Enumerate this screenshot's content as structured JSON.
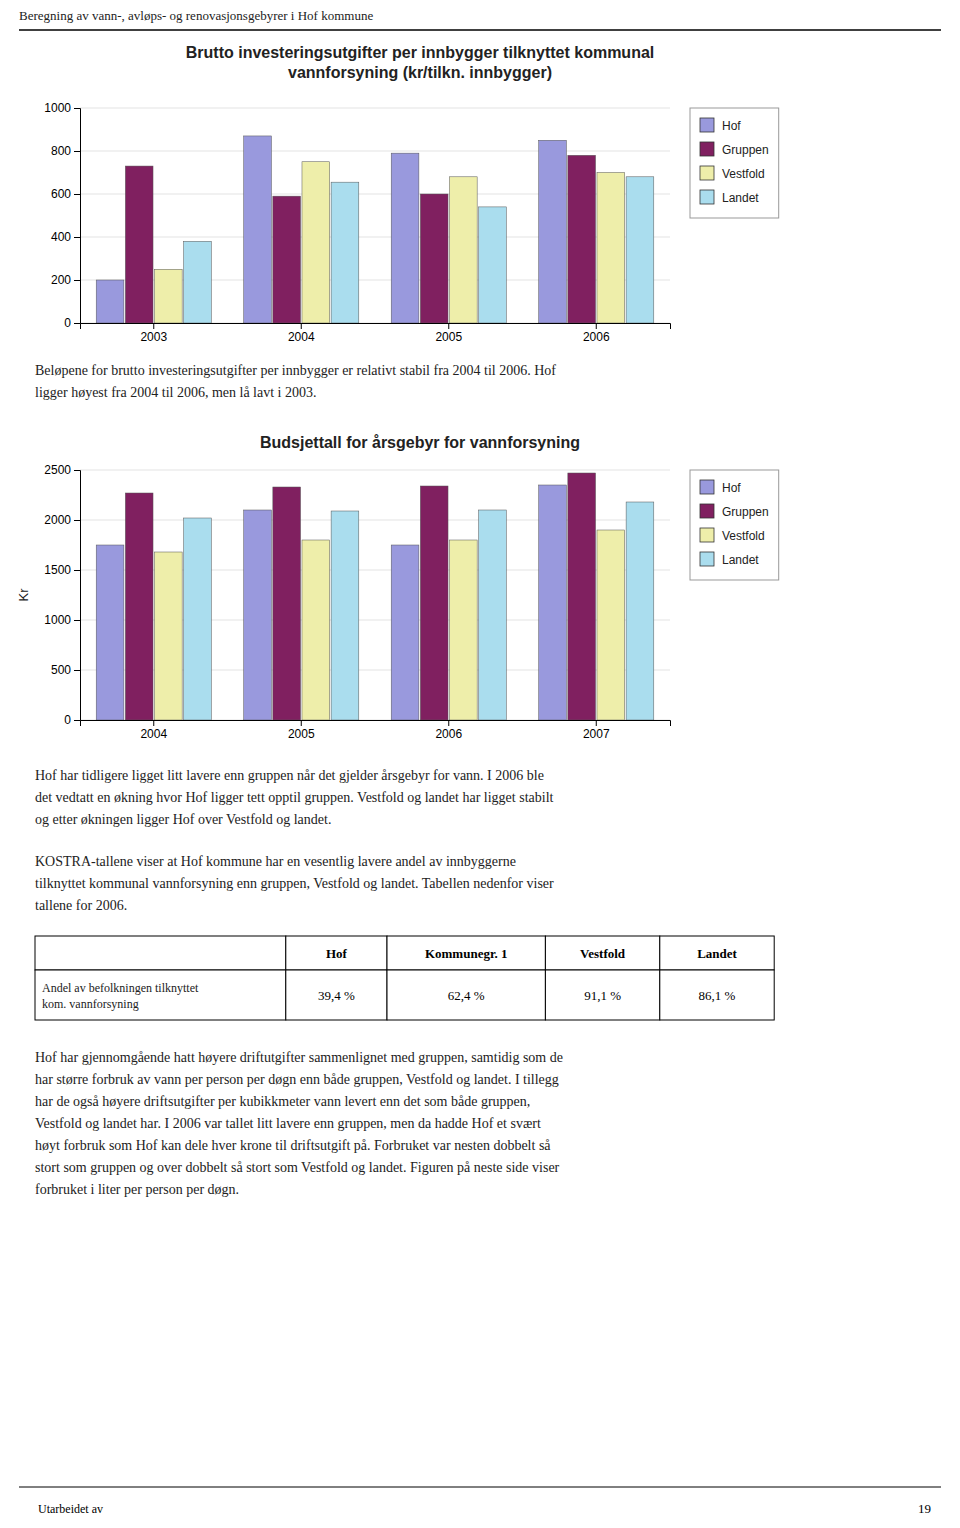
{
  "page_title": "Beregning av vann-, avløps- og renovasjonsgebyrer i Hof kommune",
  "chart_data": [
    {
      "type": "bar",
      "title": "Brutto investeringsutgifter per innbygger tilknyttet kommunal\nvannforsyning (kr/tilkn. innbygger)",
      "categories": [
        "2003",
        "2004",
        "2005",
        "2006"
      ],
      "series": [
        {
          "name": "Hof",
          "color": "#9999DD",
          "values": [
            200,
            870,
            790,
            850
          ]
        },
        {
          "name": "Gruppen",
          "color": "#802060",
          "values": [
            730,
            590,
            600,
            780
          ]
        },
        {
          "name": "Vestfold",
          "color": "#EEEEAA",
          "values": [
            250,
            750,
            680,
            700
          ]
        },
        {
          "name": "Landet",
          "color": "#AADDEE",
          "values": [
            380,
            655,
            540,
            680
          ]
        }
      ],
      "ylim": [
        0,
        1000
      ],
      "yticks": [
        0,
        200,
        400,
        600,
        800,
        1000
      ],
      "grid": true,
      "legend": "right"
    },
    {
      "type": "bar",
      "title": "Budsjettall for årsgebyr for vannforsyning",
      "ylabel": "Kr",
      "categories": [
        "2004",
        "2005",
        "2006",
        "2007"
      ],
      "series": [
        {
          "name": "Hof",
          "color": "#9999DD",
          "values": [
            1750,
            2100,
            1750,
            2350
          ]
        },
        {
          "name": "Gruppen",
          "color": "#802060",
          "values": [
            2270,
            2330,
            2340,
            2470
          ]
        },
        {
          "name": "Vestfold",
          "color": "#EEEEAA",
          "values": [
            1680,
            1800,
            1800,
            1900
          ]
        },
        {
          "name": "Landet",
          "color": "#AADDEE",
          "values": [
            2020,
            2090,
            2100,
            2180
          ]
        }
      ],
      "ylim": [
        0,
        2500
      ],
      "yticks": [
        0,
        500,
        1000,
        1500,
        2000,
        2500
      ],
      "grid": true,
      "legend": "right"
    }
  ],
  "texts": [
    "Beløpene for brutto investeringsutgifter per innbygger er relativt stabil fra 2004 til 2006. Hof\nligger høyest fra 2004 til 2006, men lå lavt i 2003.",
    "Hof har tidligere ligget litt lavere enn gruppen når det gjelder årsgebyr for vann. I 2006 ble\ndet vedtatt en økning hvor Hof ligger tett opptil gruppen. Vestfold og landet har ligget stabilt\nog etter økningen ligger Hof over Vestfold og landet.",
    "KOSTRA-tallene viser at Hof kommune har en vesentlig lavere andel av innbyggerne\ntilknyttet kommunal vannforsyning enn gruppen, Vestfold og landet. Tabellen nedenfor viser\ntallene for 2006.",
    "Hof har gjennomgående hatt høyere driftutgifter sammenlignet med gruppen, samtidig som de\nhar større forbruk av vann per person per døgn enn både gruppen, Vestfold og landet. I tillegg\nhar de også høyere driftsutgifter per kubikkmeter vann levert enn det som både gruppen,\nVestfold og landet har. I 2006 var tallet litt lavere enn gruppen, men da hadde Hof et svært\nhøyt forbruk som Hof kan dele hver krone til driftsutgift på. Forbruket var nesten dobbelt så\nstort som gruppen og over dobbelt så stort som Vestfold og landet. Figuren på neste side viser\nforbruket i liter per person per døgn."
  ],
  "table": {
    "columns": [
      "Hof",
      "Kommunegr. 1",
      "Vestfold",
      "Landet"
    ],
    "row_label": "Andel av befolkningen tilknyttet\nkom. vannforsyning",
    "values": [
      "39,4 %",
      "62,4 %",
      "91,1 %",
      "86,1 %"
    ]
  },
  "footer": "Utarbeidet av",
  "page_number": "19"
}
